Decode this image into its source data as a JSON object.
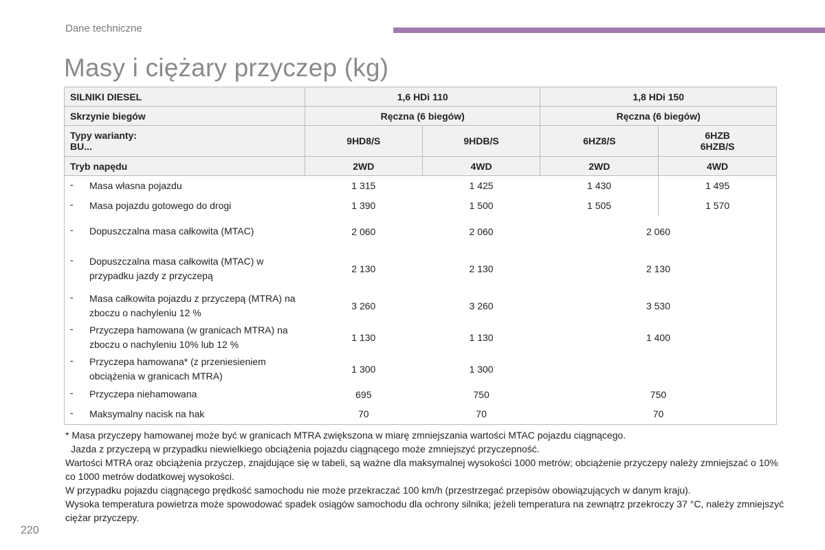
{
  "header": {
    "section": "Dane techniczne",
    "accent_color": "#a07bb0"
  },
  "title": "Masy i ciężary przyczep (kg)",
  "table": {
    "row_engines": {
      "label": "SILNIKI DIESEL",
      "engine1": "1,6 HDi 110",
      "engine2": "1,8 HDi 150"
    },
    "row_gearbox": {
      "label": "Skrzynie biegów",
      "g1": "Ręczna (6 biegów)",
      "g2": "Ręczna (6 biegów)"
    },
    "row_variants": {
      "label1": "Typy warianty:",
      "label2": "BU...",
      "v1": "9HD8/S",
      "v2": "9HDB/S",
      "v3": "6HZ8/S",
      "v4a": "6HZB",
      "v4b": "6HZB/S"
    },
    "row_drive": {
      "label": "Tryb napędu",
      "d1": "2WD",
      "d2": "4WD",
      "d3": "2WD",
      "d4": "4WD"
    },
    "dash": "-",
    "rows": [
      {
        "label": "Masa własna pojazdu",
        "v1": "1 315",
        "v2": "1 425",
        "v3": "1 430",
        "v4": "1 495"
      },
      {
        "label": "Masa pojazdu gotowego do drogi",
        "v1": "1 390",
        "v2": "1 500",
        "v3": "1 505",
        "v4": "1 570"
      },
      {
        "label": "Dopuszczalna masa całkowita (MTAC)",
        "v1": "2 060",
        "v2": "2 060",
        "v34": "2 060"
      },
      {
        "label": "Dopuszczalna masa całkowita (MTAC) w przypadku jazdy z przyczepą",
        "v1": "2 130",
        "v2": "2 130",
        "v34": "2 130"
      },
      {
        "label": "Masa całkowita pojazdu z przyczepą (MTRA) na zboczu o nachyleniu 12 %",
        "v1": "3 260",
        "v2": "3 260",
        "v34": "3 530"
      },
      {
        "label": "Przyczepa hamowana (w granicach MTRA) na zboczu o nachyleniu 10% lub 12 %",
        "v1": "1 130",
        "v2": "1 130",
        "v34": "1 400"
      },
      {
        "label": "Przyczepa hamowana* (z przeniesieniem obciążenia w granicach MTRA)",
        "v1": "1 300",
        "v2": "1 300",
        "v34": ""
      },
      {
        "label": "Przyczepa niehamowana",
        "v1": "695",
        "v2": "750",
        "v34": "750"
      },
      {
        "label": "Maksymalny nacisk na hak",
        "v1": "70",
        "v2": "70",
        "v34": "70"
      }
    ]
  },
  "notes": [
    "* Masa przyczepy hamowanej może być w granicach MTRA zwiększona w miarę zmniejszania wartości MTAC pojazdu ciągnącego.",
    "Jazda z przyczepą w przypadku niewielkiego obciążenia pojazdu ciągnącego może zmniejszyć przyczepność.",
    "Wartości MTRA oraz obciążenia przyczep, znajdujące się w tabeli, są ważne dla maksymalnej wysokości 1000 metrów; obciążenie przyczepy należy zmniejszać o 10% co 1000 metrów dodatkowej wysokości.",
    "W przypadku pojazdu ciągnącego prędkość samochodu nie może przekraczać 100 km/h (przestrzegać przepisów obowiązujących w danym kraju).",
    "Wysoka temperatura powietrza może spowodować spadek osiągów samochodu dla ochrony silnika; jeżeli temperatura na zewnątrz przekroczy 37 °C, należy zmniejszyć ciężar przyczepy."
  ],
  "page_number": "220"
}
